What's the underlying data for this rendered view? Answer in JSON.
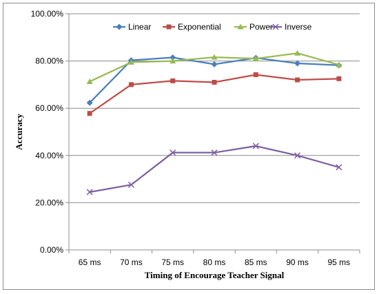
{
  "chart_data": {
    "type": "line",
    "title": "",
    "xlabel": "Timing of Encourage Teacher Signal",
    "ylabel": "Accuracy",
    "categories": [
      "65 ms",
      "70 ms",
      "75 ms",
      "80 ms",
      "85 ms",
      "90 ms",
      "95 ms"
    ],
    "ylim": [
      0,
      100
    ],
    "yticks": [
      "0.00%",
      "20.00%",
      "40.00%",
      "60.00%",
      "80.00%",
      "100.00%"
    ],
    "grid": true,
    "legend_position": "top-right",
    "series": [
      {
        "name": "Linear",
        "color": "#4a7ebb",
        "marker": "diamond",
        "values": [
          62.3,
          80.3,
          81.5,
          78.6,
          81.3,
          79.0,
          78.2
        ]
      },
      {
        "name": "Exponential",
        "color": "#be4b48",
        "marker": "square",
        "values": [
          57.8,
          70.0,
          71.6,
          71.0,
          74.2,
          72.0,
          72.5
        ]
      },
      {
        "name": "Power",
        "color": "#98b954",
        "marker": "triangle",
        "values": [
          71.3,
          79.5,
          80.0,
          81.6,
          81.0,
          83.3,
          78.4
        ]
      },
      {
        "name": "Inverse",
        "color": "#7d60a0",
        "marker": "x",
        "values": [
          24.5,
          27.6,
          41.2,
          41.2,
          44.0,
          40.0,
          35.0
        ]
      }
    ]
  }
}
